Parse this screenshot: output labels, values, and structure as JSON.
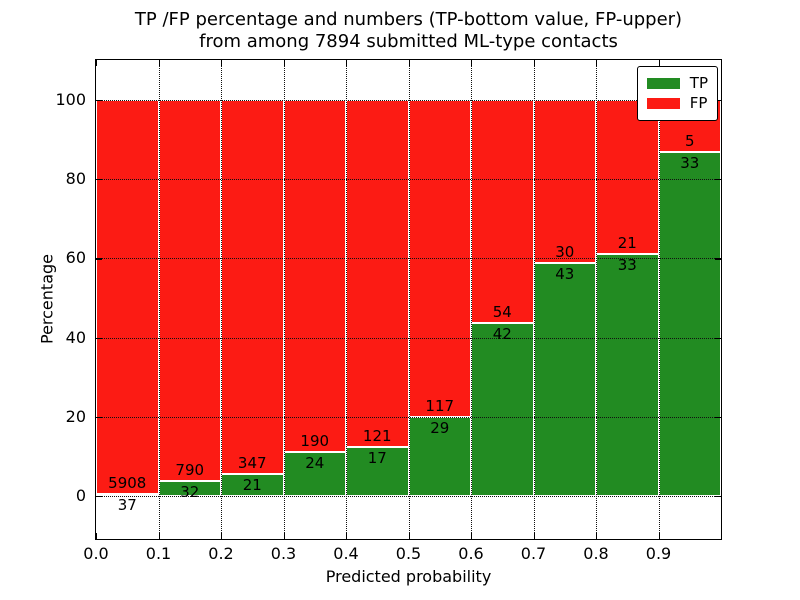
{
  "chart_data": {
    "type": "bar",
    "stacked": true,
    "normalization": "each bin stacked to 100 percent; segment heights = count / (tp+fp) * 100",
    "title_line1": "TP /FP percentage and numbers (TP-bottom value, FP-upper)",
    "title_line2": "from among 7894 submitted ML-type contacts",
    "xlabel": "Predicted probability",
    "ylabel": "Percentage",
    "total_contacts": 7894,
    "bin_width": 0.1,
    "bins": [
      {
        "x_start": 0.0,
        "tp": 37,
        "fp": 5908
      },
      {
        "x_start": 0.1,
        "tp": 32,
        "fp": 790
      },
      {
        "x_start": 0.2,
        "tp": 21,
        "fp": 347
      },
      {
        "x_start": 0.3,
        "tp": 24,
        "fp": 190
      },
      {
        "x_start": 0.4,
        "tp": 17,
        "fp": 121
      },
      {
        "x_start": 0.5,
        "tp": 29,
        "fp": 117
      },
      {
        "x_start": 0.6,
        "tp": 42,
        "fp": 54
      },
      {
        "x_start": 0.7,
        "tp": 43,
        "fp": 30
      },
      {
        "x_start": 0.8,
        "tp": 33,
        "fp": 21
      },
      {
        "x_start": 0.9,
        "tp": 33,
        "fp": 5
      }
    ],
    "xtick_labels": [
      "0.0",
      "0.1",
      "0.2",
      "0.3",
      "0.4",
      "0.5",
      "0.6",
      "0.7",
      "0.8",
      "0.9"
    ],
    "ytick_values": [
      0,
      20,
      40,
      60,
      80,
      100
    ],
    "xlim": [
      0.0,
      1.0
    ],
    "ylim": [
      -10.8,
      110
    ],
    "grid": "dotted",
    "colors": {
      "tp": "#228b22",
      "fp": "#fc1b14"
    },
    "legend": {
      "position": "upper right",
      "entries": [
        {
          "label": "TP",
          "color_key": "tp"
        },
        {
          "label": "FP",
          "color_key": "fp"
        }
      ]
    }
  }
}
